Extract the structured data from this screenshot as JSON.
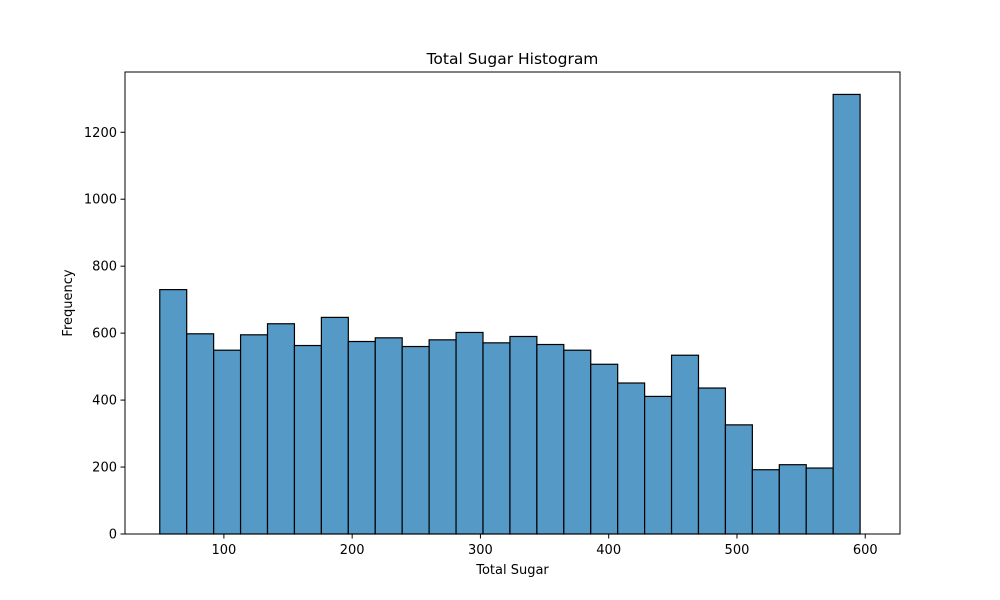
{
  "chart_data": {
    "type": "bar",
    "title": "Total Sugar Histogram",
    "xlabel": "Total Sugar",
    "ylabel": "Frequency",
    "xlim": [
      22.9,
      627.1
    ],
    "ylim": [
      0,
      1380
    ],
    "grid": false,
    "bar_color": "#5599c7",
    "edge_color": "#000000",
    "x_ticks": [
      100,
      200,
      300,
      400,
      500,
      600
    ],
    "y_ticks": [
      0,
      200,
      400,
      600,
      800,
      1000,
      1200
    ],
    "bins": [
      {
        "x0": 50.0,
        "x1": 71.0,
        "count": 730
      },
      {
        "x0": 71.0,
        "x1": 92.0,
        "count": 598
      },
      {
        "x0": 92.0,
        "x1": 113.0,
        "count": 549
      },
      {
        "x0": 113.0,
        "x1": 134.0,
        "count": 595
      },
      {
        "x0": 134.0,
        "x1": 155.0,
        "count": 628
      },
      {
        "x0": 155.0,
        "x1": 176.0,
        "count": 563
      },
      {
        "x0": 176.0,
        "x1": 197.0,
        "count": 647
      },
      {
        "x0": 197.0,
        "x1": 218.0,
        "count": 575
      },
      {
        "x0": 218.0,
        "x1": 239.0,
        "count": 586
      },
      {
        "x0": 239.0,
        "x1": 260.0,
        "count": 560
      },
      {
        "x0": 260.0,
        "x1": 281.0,
        "count": 580
      },
      {
        "x0": 281.0,
        "x1": 302.0,
        "count": 602
      },
      {
        "x0": 302.0,
        "x1": 323.0,
        "count": 571
      },
      {
        "x0": 323.0,
        "x1": 344.0,
        "count": 590
      },
      {
        "x0": 344.0,
        "x1": 365.0,
        "count": 566
      },
      {
        "x0": 365.0,
        "x1": 386.0,
        "count": 549
      },
      {
        "x0": 386.0,
        "x1": 407.0,
        "count": 507
      },
      {
        "x0": 407.0,
        "x1": 428.0,
        "count": 451
      },
      {
        "x0": 428.0,
        "x1": 449.0,
        "count": 411
      },
      {
        "x0": 449.0,
        "x1": 470.0,
        "count": 534
      },
      {
        "x0": 470.0,
        "x1": 491.0,
        "count": 436
      },
      {
        "x0": 491.0,
        "x1": 512.0,
        "count": 326
      },
      {
        "x0": 512.0,
        "x1": 533.0,
        "count": 192
      },
      {
        "x0": 533.0,
        "x1": 554.0,
        "count": 207
      },
      {
        "x0": 554.0,
        "x1": 575.0,
        "count": 197
      },
      {
        "x0": 575.0,
        "x1": 596.0,
        "count": 1313
      }
    ]
  }
}
